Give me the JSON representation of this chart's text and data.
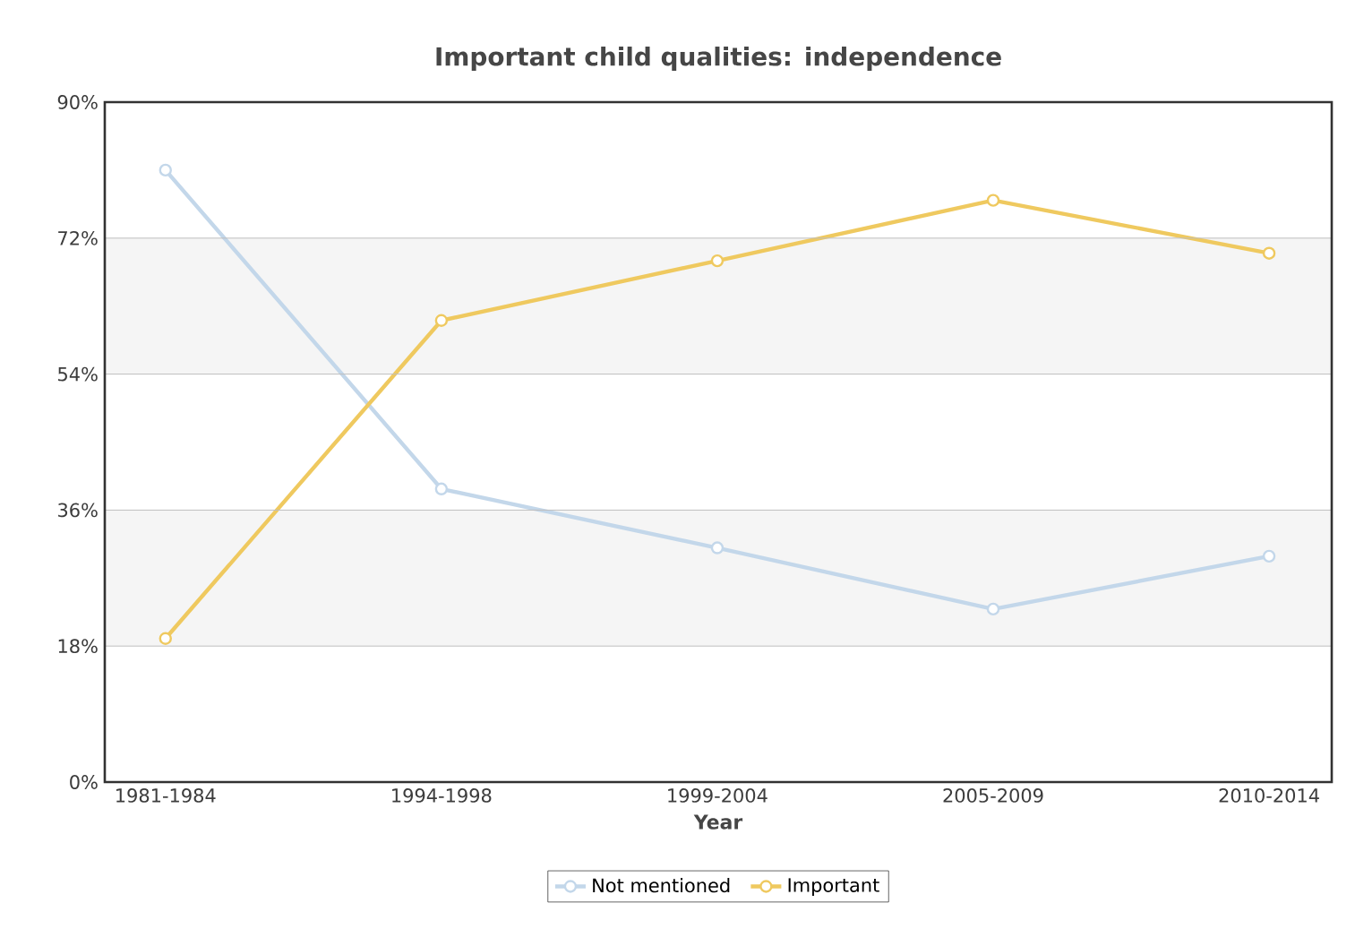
{
  "chart_data": {
    "type": "line",
    "title": "Important child qualities: independence",
    "xlabel": "Year",
    "categories": [
      "1981-1984",
      "1994-1998",
      "1999-2004",
      "2005-2009",
      "2010-2014"
    ],
    "series": [
      {
        "name": "Not mentioned",
        "color": "#c3d7ea",
        "values": [
          81,
          38.8,
          31,
          22.9,
          29.9
        ]
      },
      {
        "name": "Important",
        "color": "#efc95f",
        "values": [
          19,
          61.1,
          69,
          77,
          70
        ]
      }
    ],
    "ylim": [
      0,
      90
    ],
    "yticks": [
      {
        "value": 0,
        "label": "0%"
      },
      {
        "value": 18,
        "label": "18%"
      },
      {
        "value": 36,
        "label": "36%"
      },
      {
        "value": 54,
        "label": "54%"
      },
      {
        "value": 72,
        "label": "72%"
      },
      {
        "value": 90,
        "label": "90%"
      }
    ],
    "bands": [
      {
        "axis": "y",
        "from": 18,
        "to": 36,
        "color": "#f5f5f5"
      },
      {
        "axis": "y",
        "from": 54,
        "to": 72,
        "color": "#f5f5f5"
      }
    ],
    "grid": "y",
    "legend": "bottom",
    "marker": "circle",
    "line_style": "solid"
  }
}
